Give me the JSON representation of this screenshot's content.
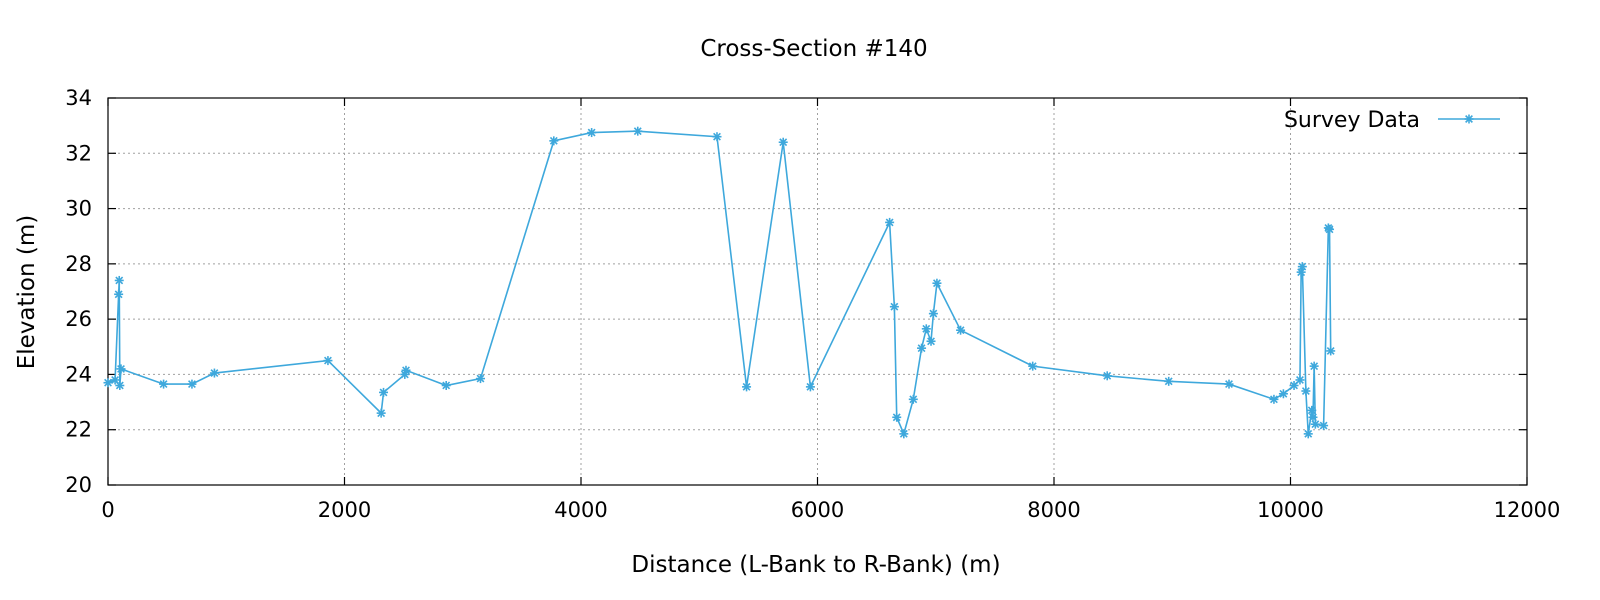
{
  "chart_data": {
    "type": "line",
    "title": "Cross-Section #140",
    "xlabel": "Distance (L-Bank to R-Bank) (m)",
    "ylabel": "Elevation (m)",
    "xlim": [
      0,
      12000
    ],
    "ylim": [
      20,
      34
    ],
    "xticks": [
      0,
      2000,
      4000,
      6000,
      8000,
      10000,
      12000
    ],
    "yticks": [
      20,
      22,
      24,
      26,
      28,
      30,
      32,
      34
    ],
    "grid": true,
    "legend_position": "top-right",
    "colors": {
      "series": "#3ea8dc"
    },
    "series": [
      {
        "name": "Survey Data",
        "marker": "star",
        "x": [
          0,
          60,
          90,
          95,
          100,
          110,
          470,
          710,
          900,
          1860,
          2310,
          2330,
          2510,
          2520,
          2860,
          3150,
          3770,
          4090,
          4480,
          5150,
          5400,
          5710,
          5940,
          6610,
          6650,
          6670,
          6730,
          6810,
          6880,
          6920,
          6960,
          6980,
          7010,
          7210,
          7820,
          8450,
          8970,
          9480,
          9860,
          9940,
          10030,
          10080,
          10090,
          10100,
          10130,
          10150,
          10180,
          10190,
          10200,
          10210,
          10280,
          10320,
          10330,
          10340
        ],
        "y": [
          23.7,
          23.8,
          26.9,
          27.4,
          23.6,
          24.2,
          23.65,
          23.65,
          24.05,
          24.5,
          22.6,
          23.35,
          24.0,
          24.15,
          23.6,
          23.85,
          32.45,
          32.75,
          32.8,
          32.6,
          23.55,
          32.4,
          23.55,
          29.5,
          26.45,
          22.45,
          21.85,
          23.1,
          24.95,
          25.65,
          25.2,
          26.2,
          27.3,
          25.6,
          24.3,
          23.95,
          23.75,
          23.65,
          23.1,
          23.3,
          23.6,
          23.8,
          27.7,
          27.9,
          23.4,
          21.85,
          22.7,
          22.45,
          24.3,
          22.2,
          22.15,
          29.3,
          29.25,
          24.85
        ]
      }
    ]
  }
}
